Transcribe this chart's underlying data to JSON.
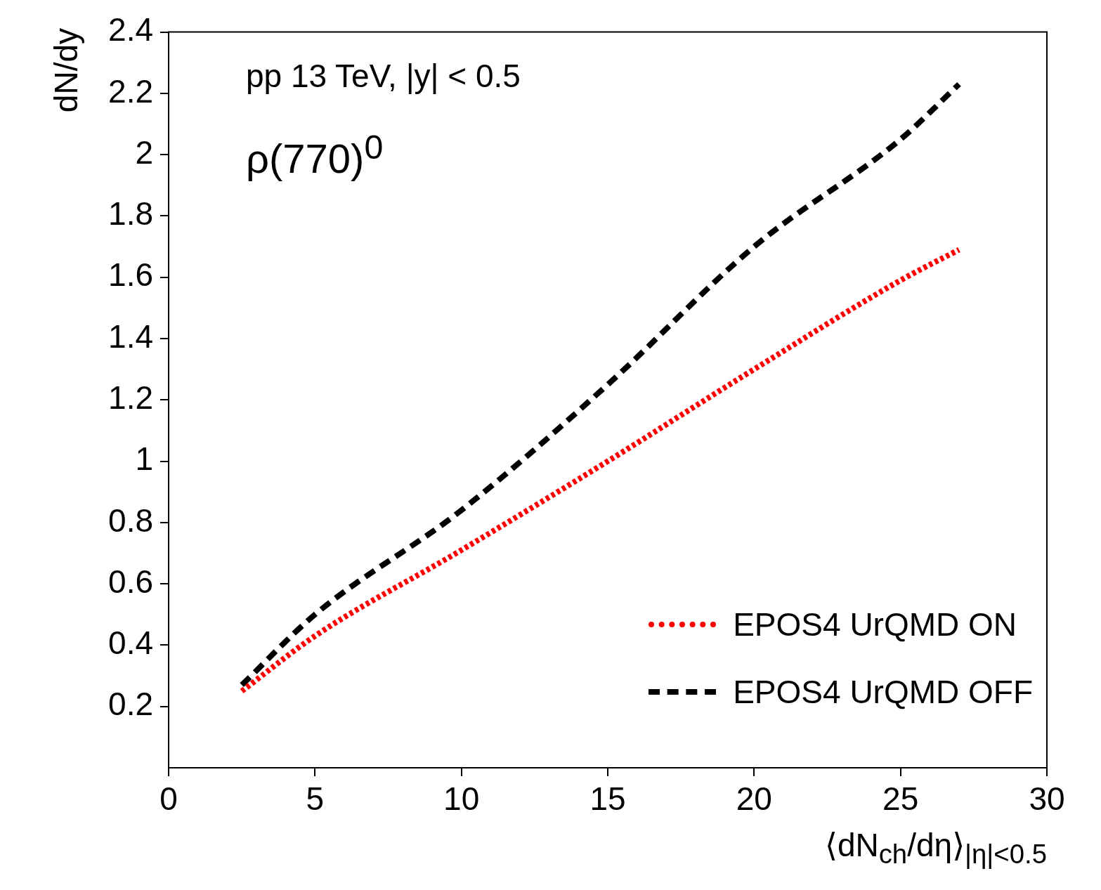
{
  "chart_data": {
    "type": "line",
    "xlabel": "⟨dN$_{ch}$/dη⟩$_{|η|<0.5}$",
    "ylabel": "dN/dy",
    "annotations": [
      "pp 13 TeV, |y| < 0.5",
      "ρ(770)$^{0}$"
    ],
    "x": [
      2.5,
      5,
      10,
      15,
      20,
      25,
      27
    ],
    "series": [
      {
        "name": "EPOS4 UrQMD ON",
        "color": "#ff0000",
        "line_style": "dotted",
        "values": [
          0.25,
          0.43,
          0.71,
          1.0,
          1.3,
          1.59,
          1.69
        ]
      },
      {
        "name": "EPOS4 UrQMD OFF",
        "color": "#000000",
        "line_style": "dashed",
        "values": [
          0.27,
          0.5,
          0.84,
          1.25,
          1.7,
          2.05,
          2.23
        ]
      }
    ],
    "xlim": [
      0,
      30
    ],
    "xticks": [
      0,
      5,
      10,
      15,
      20,
      25,
      30
    ],
    "ylim": [
      0,
      2.4
    ],
    "yticks": [
      0.2,
      0.4,
      0.6,
      0.8,
      1,
      1.2,
      1.4,
      1.6,
      1.8,
      2,
      2.2,
      2.4
    ],
    "grid": false,
    "legend": "bottom right",
    "marker": "none"
  }
}
